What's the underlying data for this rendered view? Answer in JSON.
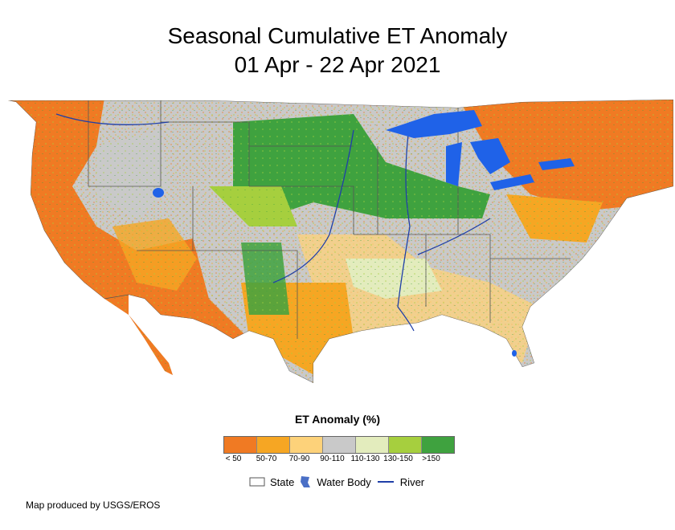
{
  "title": {
    "line1": "Seasonal Cumulative ET Anomaly",
    "line2": "01 Apr - 22 Apr 2021"
  },
  "map": {
    "region": "Contiguous United States"
  },
  "legend": {
    "title": "ET Anomaly (%)",
    "bins": [
      {
        "label": "< 50",
        "color": "#f07a23"
      },
      {
        "label": "50-70",
        "color": "#f6a623"
      },
      {
        "label": "70-90",
        "color": "#fdd27a"
      },
      {
        "label": "90-110",
        "color": "#c9c9c9"
      },
      {
        "label": "110-130",
        "color": "#e3ecbd"
      },
      {
        "label": "130-150",
        "color": "#a6cf3e"
      },
      {
        "label": ">150",
        "color": "#3fa23f"
      }
    ],
    "keys": {
      "state": "State",
      "water": "Water Body",
      "river": "River"
    }
  },
  "colors": {
    "water": "#1f62e8",
    "river": "#1f3fa8",
    "state_line": "#555555"
  },
  "credit": "Map produced by USGS/EROS"
}
